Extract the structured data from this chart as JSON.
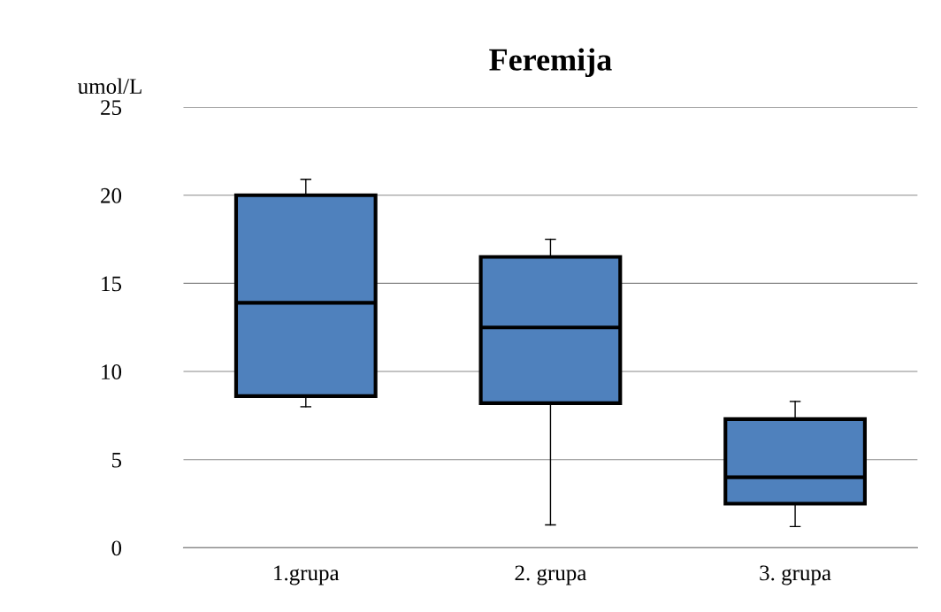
{
  "chart_data": {
    "type": "box",
    "title": "Feremija",
    "ylabel": "umol/L",
    "categories": [
      "1.grupa",
      "2. grupa",
      "3. grupa"
    ],
    "boxes": [
      {
        "low": 8.0,
        "q1": 8.6,
        "median": 13.9,
        "q3": 20.0,
        "high": 20.9
      },
      {
        "low": 1.3,
        "q1": 8.2,
        "median": 12.5,
        "q3": 16.5,
        "high": 17.5
      },
      {
        "low": 1.2,
        "q1": 2.5,
        "median": 4.0,
        "q3": 7.3,
        "high": 8.3
      }
    ],
    "color": "#4f81bd",
    "ylim": [
      0,
      25
    ],
    "yticks": [
      0,
      5,
      10,
      15,
      20,
      25
    ],
    "grid": "y"
  }
}
